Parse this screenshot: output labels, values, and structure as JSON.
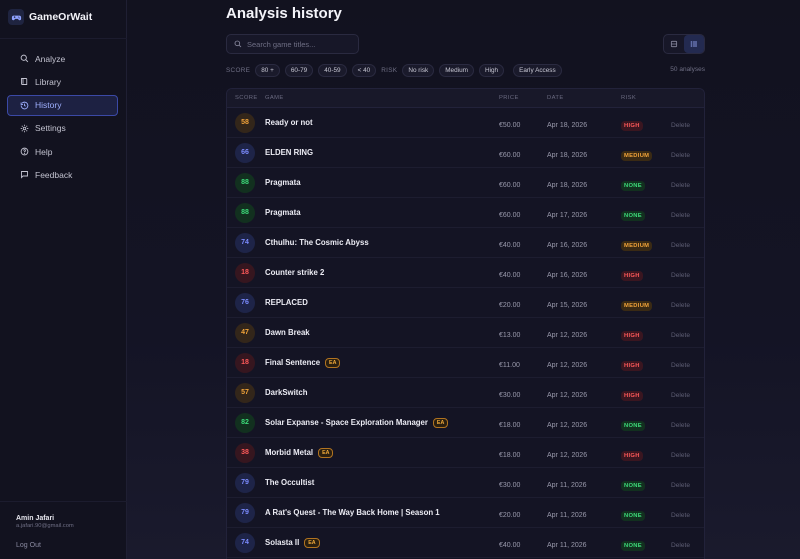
{
  "app": {
    "name": "GameOrWait"
  },
  "nav": [
    {
      "label": "Analyze",
      "icon": "search-icon"
    },
    {
      "label": "Library",
      "icon": "book-icon"
    },
    {
      "label": "History",
      "icon": "history-icon",
      "active": true
    },
    {
      "label": "Settings",
      "icon": "gear-icon"
    },
    {
      "label": "Help",
      "icon": "help-icon"
    },
    {
      "label": "Feedback",
      "icon": "chat-icon"
    }
  ],
  "user": {
    "name": "Amin Jafari",
    "email": "a.jafari.90@gmail.com",
    "logout_label": "Log Out"
  },
  "page": {
    "title": "Analysis history"
  },
  "search": {
    "placeholder": "Search game titles..."
  },
  "filters": {
    "score_label": "SCORE",
    "score_chips": [
      "80 +",
      "60-79",
      "40-59",
      "< 40"
    ],
    "risk_label": "RISK",
    "risk_chips": [
      "No risk",
      "Medium",
      "High"
    ],
    "extra_chip": "Early Access"
  },
  "count_label": "50 analyses",
  "table": {
    "headers": {
      "score": "SCORE",
      "game": "GAME",
      "price": "PRICE",
      "date": "DATE",
      "risk": "RISK"
    },
    "delete_label": "Delete",
    "ea_label": "EA",
    "rows": [
      {
        "score": "58",
        "title": "Ready or not",
        "ea": false,
        "price": "€50.00",
        "date": "Apr 18, 2026",
        "risk": "HIGH"
      },
      {
        "score": "66",
        "title": "ELDEN RING",
        "ea": false,
        "price": "€60.00",
        "date": "Apr 18, 2026",
        "risk": "MEDIUM"
      },
      {
        "score": "88",
        "title": "Pragmata",
        "ea": false,
        "price": "€60.00",
        "date": "Apr 18, 2026",
        "risk": "NONE"
      },
      {
        "score": "88",
        "title": "Pragmata",
        "ea": false,
        "price": "€60.00",
        "date": "Apr 17, 2026",
        "risk": "NONE"
      },
      {
        "score": "74",
        "title": "Cthulhu: The Cosmic Abyss",
        "ea": false,
        "price": "€40.00",
        "date": "Apr 16, 2026",
        "risk": "MEDIUM"
      },
      {
        "score": "18",
        "title": "Counter strike 2",
        "ea": false,
        "price": "€40.00",
        "date": "Apr 16, 2026",
        "risk": "HIGH"
      },
      {
        "score": "76",
        "title": "REPLACED",
        "ea": false,
        "price": "€20.00",
        "date": "Apr 15, 2026",
        "risk": "MEDIUM"
      },
      {
        "score": "47",
        "title": "Dawn Break",
        "ea": false,
        "price": "€13.00",
        "date": "Apr 12, 2026",
        "risk": "HIGH"
      },
      {
        "score": "18",
        "title": "Final Sentence",
        "ea": true,
        "price": "€11.00",
        "date": "Apr 12, 2026",
        "risk": "HIGH"
      },
      {
        "score": "57",
        "title": "DarkSwitch",
        "ea": false,
        "price": "€30.00",
        "date": "Apr 12, 2026",
        "risk": "HIGH"
      },
      {
        "score": "82",
        "title": "Solar Expanse - Space Exploration Manager",
        "ea": true,
        "price": "€18.00",
        "date": "Apr 12, 2026",
        "risk": "NONE"
      },
      {
        "score": "38",
        "title": "Morbid Metal",
        "ea": true,
        "price": "€18.00",
        "date": "Apr 12, 2026",
        "risk": "HIGH"
      },
      {
        "score": "79",
        "title": "The Occultist",
        "ea": false,
        "price": "€30.00",
        "date": "Apr 11, 2026",
        "risk": "NONE"
      },
      {
        "score": "79",
        "title": "A Rat's Quest - The Way Back Home | Season 1",
        "ea": false,
        "price": "€20.00",
        "date": "Apr 11, 2026",
        "risk": "NONE"
      },
      {
        "score": "74",
        "title": "Solasta II",
        "ea": true,
        "price": "€40.00",
        "date": "Apr 11, 2026",
        "risk": "NONE"
      }
    ]
  },
  "colors": {
    "accent": "#5b6cf0",
    "score_high": "#3ddc7a",
    "score_mid": "#7c8cff",
    "score_warn": "#f3a43a",
    "score_low": "#ff5a5a"
  }
}
